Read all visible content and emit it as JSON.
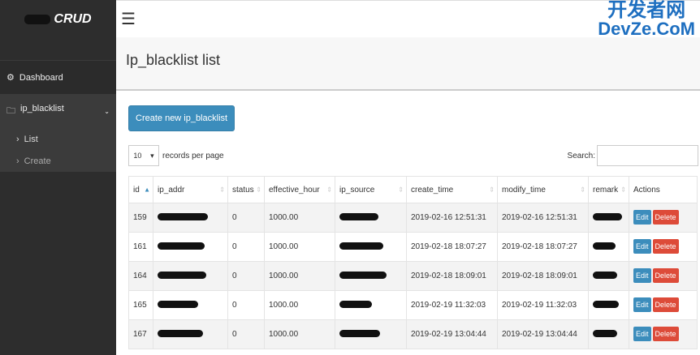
{
  "sidebar": {
    "logo_text": "CRUD",
    "items": [
      {
        "label": "Dashboard",
        "icon": "dashboard-icon"
      },
      {
        "label": "ip_blacklist",
        "icon": "folder-icon"
      }
    ],
    "sub_items": [
      {
        "label": "List"
      },
      {
        "label": "Create"
      }
    ]
  },
  "header": {
    "menu_icon": "☰",
    "title": "Ip_blacklist list"
  },
  "toolbar": {
    "create_label": "Create new ip_blacklist",
    "page_size": "10",
    "records_label": "records per page",
    "search_label": "Search:",
    "search_value": ""
  },
  "table": {
    "columns": [
      "id",
      "ip_addr",
      "status",
      "effective_hour",
      "ip_source",
      "create_time",
      "modify_time",
      "remark",
      "Actions"
    ],
    "rows": [
      {
        "id": "159",
        "status": "0",
        "effective_hour": "1000.00",
        "create_time": "2019-02-16 12:51:31",
        "modify_time": "2019-02-16 12:51:31"
      },
      {
        "id": "161",
        "status": "0",
        "effective_hour": "1000.00",
        "create_time": "2019-02-18 18:07:27",
        "modify_time": "2019-02-18 18:07:27"
      },
      {
        "id": "164",
        "status": "0",
        "effective_hour": "1000.00",
        "create_time": "2019-02-18 18:09:01",
        "modify_time": "2019-02-18 18:09:01"
      },
      {
        "id": "165",
        "status": "0",
        "effective_hour": "1000.00",
        "create_time": "2019-02-19 11:32:03",
        "modify_time": "2019-02-19 11:32:03"
      },
      {
        "id": "167",
        "status": "0",
        "effective_hour": "1000.00",
        "create_time": "2019-02-19 13:04:44",
        "modify_time": "2019-02-19 13:04:44"
      }
    ],
    "edit_label": "Edit",
    "delete_label": "Delete"
  },
  "watermark": {
    "line1": "开发者网",
    "line2": "DevZe.CoM"
  },
  "colors": {
    "primary": "#3c8dbc",
    "danger": "#dd4b39",
    "sidebar": "#2d2d2d"
  }
}
